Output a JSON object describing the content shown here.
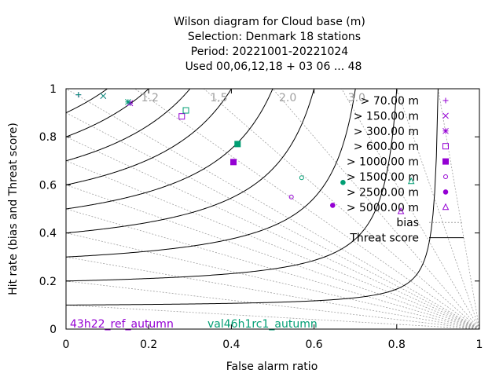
{
  "chart_data": {
    "type": "scatter",
    "title_lines": [
      "Wilson diagram  for Cloud base (m)",
      "Selection: Denmark      18 stations",
      "Period: 20221001-20221024",
      "Used  00,06,12,18  + 03 06 ... 48"
    ],
    "xlabel": "False alarm ratio",
    "ylabel": "Hit rate (bias and Threat score)",
    "xlim": [
      0,
      1
    ],
    "ylim": [
      0,
      1
    ],
    "x_ticks": [
      "0",
      "0.2",
      "0.4",
      "0.6",
      "0.8",
      "1"
    ],
    "y_ticks": [
      "0",
      "0.2",
      "0.4",
      "0.6",
      "0.8",
      "1"
    ],
    "bias_values": [
      1.2,
      1.5,
      2.0,
      3.0
    ],
    "bias_labels": [
      "1.2",
      "1.5",
      "2.0",
      "3.0"
    ],
    "threat_score_levels": [
      0.1,
      0.2,
      0.3,
      0.4,
      0.5,
      0.6,
      0.7,
      0.8,
      0.9
    ],
    "legend_bias": "bias",
    "legend_threat": "Threat score",
    "footer_left": "43h22_ref_autumn",
    "footer_right": "val46h1rc1_autumn",
    "colors": {
      "exp1": "#9400d3",
      "exp2": "#009e73",
      "bias_line": "#a0a0a0",
      "threat_line": "#000000"
    },
    "series": [
      {
        "name": "> 70.00 m",
        "marker": "plus",
        "exp1": [
          0.03,
          0.975
        ],
        "exp2": [
          0.03,
          0.975
        ]
      },
      {
        "name": "> 150.00 m",
        "marker": "cross",
        "exp1": [
          0.09,
          0.97
        ],
        "exp2": [
          0.09,
          0.97
        ]
      },
      {
        "name": "> 300.00 m",
        "marker": "star",
        "exp1": [
          0.155,
          0.94
        ],
        "exp2": [
          0.15,
          0.945
        ]
      },
      {
        "name": "> 600.00 m",
        "marker": "square",
        "exp1": [
          0.28,
          0.885
        ],
        "exp2": [
          0.29,
          0.91
        ]
      },
      {
        "name": "> 1000.00 m",
        "marker": "filled-square",
        "exp1": [
          0.405,
          0.695
        ],
        "exp2": [
          0.415,
          0.77
        ]
      },
      {
        "name": "> 1500.00 m",
        "marker": "circle",
        "exp1": [
          0.545,
          0.55
        ],
        "exp2": [
          0.57,
          0.63
        ]
      },
      {
        "name": "> 2500.00 m",
        "marker": "filled-circle",
        "exp1": [
          0.645,
          0.515
        ],
        "exp2": [
          0.67,
          0.61
        ]
      },
      {
        "name": "> 5000.00 m",
        "marker": "triangle",
        "exp1": [
          0.81,
          0.49
        ],
        "exp2": [
          0.835,
          0.615
        ]
      }
    ]
  }
}
